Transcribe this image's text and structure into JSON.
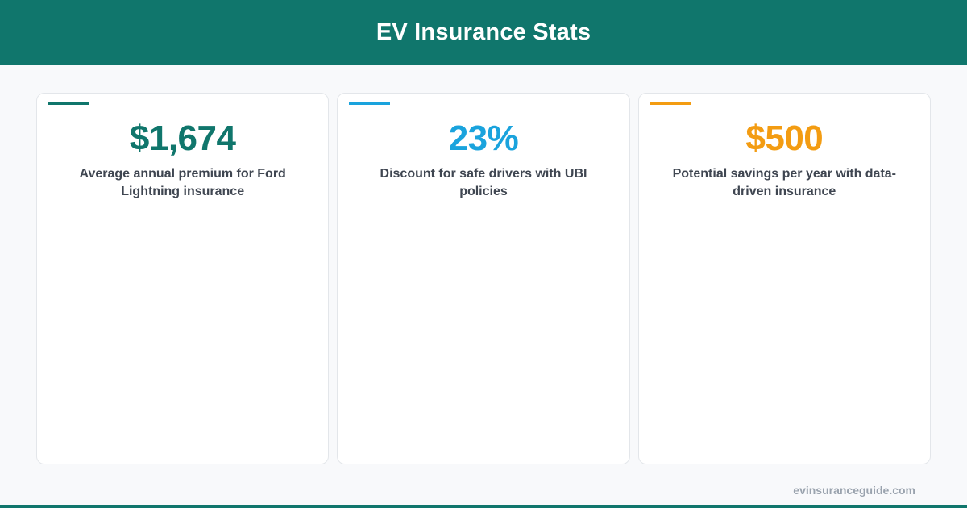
{
  "header": {
    "title": "EV Insurance Stats"
  },
  "colors": {
    "brand": "#10766c",
    "blue": "#1aa3dd",
    "orange": "#f39c12"
  },
  "cards": [
    {
      "value": "$1,674",
      "description": "Average annual premium for Ford Lightning insurance",
      "color": "#10766c"
    },
    {
      "value": "23%",
      "description": "Discount for safe drivers with UBI policies",
      "color": "#1aa3dd"
    },
    {
      "value": "$500",
      "description": "Potential savings per year with data-driven insurance",
      "color": "#f39c12"
    }
  ],
  "footer": {
    "site": "evinsuranceguide.com"
  }
}
